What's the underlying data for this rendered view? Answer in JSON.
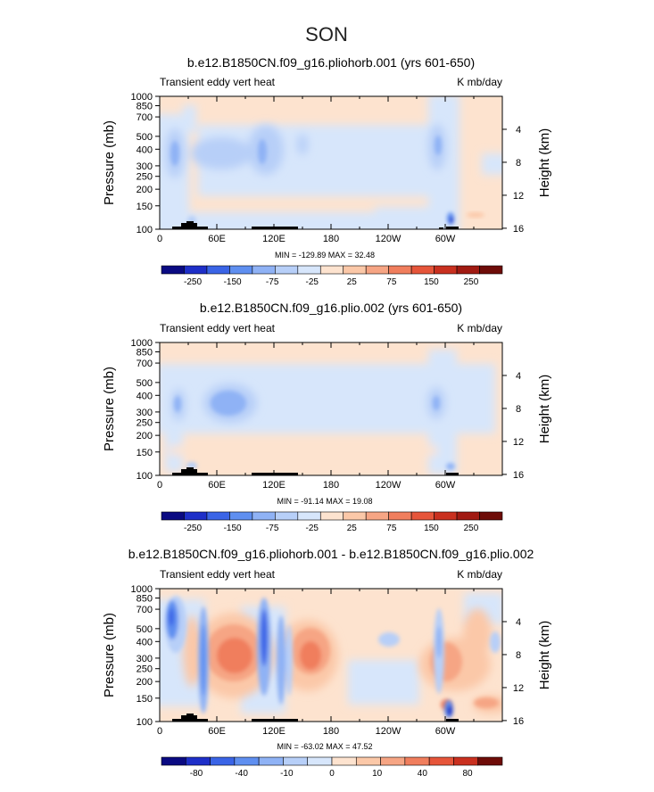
{
  "figure": {
    "title": "SON"
  },
  "chart_data": [
    {
      "type": "heatmap",
      "title": "b.e12.B1850CN.f09_g16.pliohorb.001 (yrs 601-650)",
      "left_label": "Transient eddy vert heat",
      "right_label": "K mb/day",
      "ylabel": "Pressure (mb)",
      "ylabel_right": "Height (km)",
      "x_tick_labels": [
        "0",
        "60E",
        "120E",
        "180",
        "120W",
        "60W"
      ],
      "y_tick_labels": [
        "100",
        "150",
        "200",
        "250",
        "300",
        "400",
        "500",
        "700",
        "850",
        "1000"
      ],
      "y_right_tick_labels": [
        "16",
        "12",
        "8",
        "4"
      ],
      "stats": "MIN = -129.89   MAX =  32.48",
      "colorbar_labels": [
        "-250",
        "-150",
        "-75",
        "-25",
        "25",
        "75",
        "150",
        "250"
      ],
      "colorbar_colors": [
        "#0a0a82",
        "#1e2fc8",
        "#3a64e6",
        "#5f8ff0",
        "#8fb2f5",
        "#b7cff8",
        "#d7e6fb",
        "#fde3cf",
        "#fbc8a8",
        "#f6a584",
        "#f07e5d",
        "#e6553a",
        "#c9301f",
        "#a11a12",
        "#6e0c08"
      ],
      "ylim_mb": [
        1000,
        100
      ],
      "xlim_deg": [
        0,
        360
      ]
    },
    {
      "type": "heatmap",
      "title": "b.e12.B1850CN.f09_g16.plio.002 (yrs 601-650)",
      "left_label": "Transient eddy vert heat",
      "right_label": "K mb/day",
      "ylabel": "Pressure (mb)",
      "ylabel_right": "Height (km)",
      "x_tick_labels": [
        "0",
        "60E",
        "120E",
        "180",
        "120W",
        "60W"
      ],
      "y_tick_labels": [
        "100",
        "150",
        "200",
        "250",
        "300",
        "400",
        "500",
        "700",
        "850",
        "1000"
      ],
      "y_right_tick_labels": [
        "16",
        "12",
        "8",
        "4"
      ],
      "stats": "MIN = -91.14   MAX =  19.08",
      "colorbar_labels": [
        "-250",
        "-150",
        "-75",
        "-25",
        "25",
        "75",
        "150",
        "250"
      ],
      "colorbar_colors": [
        "#0a0a82",
        "#1e2fc8",
        "#3a64e6",
        "#5f8ff0",
        "#8fb2f5",
        "#b7cff8",
        "#d7e6fb",
        "#fde3cf",
        "#fbc8a8",
        "#f6a584",
        "#f07e5d",
        "#e6553a",
        "#c9301f",
        "#a11a12",
        "#6e0c08"
      ],
      "ylim_mb": [
        1000,
        100
      ],
      "xlim_deg": [
        0,
        360
      ]
    },
    {
      "type": "heatmap",
      "title": "b.e12.B1850CN.f09_g16.pliohorb.001 - b.e12.B1850CN.f09_g16.plio.002",
      "left_label": "Transient eddy vert heat",
      "right_label": "K mb/day",
      "ylabel": "Pressure (mb)",
      "ylabel_right": "Height (km)",
      "x_tick_labels": [
        "0",
        "60E",
        "120E",
        "180",
        "120W",
        "60W"
      ],
      "y_tick_labels": [
        "100",
        "150",
        "200",
        "250",
        "300",
        "400",
        "500",
        "700",
        "850",
        "1000"
      ],
      "y_right_tick_labels": [
        "16",
        "12",
        "8",
        "4"
      ],
      "stats": "MIN = -63.02   MAX =  47.52",
      "colorbar_labels": [
        "-80",
        "-40",
        "-10",
        "0",
        "10",
        "40",
        "80"
      ],
      "colorbar_colors": [
        "#0a0a82",
        "#1e2fc8",
        "#3a64e6",
        "#5f8ff0",
        "#8fb2f5",
        "#b7cff8",
        "#d7e6fb",
        "#fde3cf",
        "#fbc8a8",
        "#f6a584",
        "#f07e5d",
        "#e6553a",
        "#c9301f",
        "#6e0c08"
      ],
      "ylim_mb": [
        1000,
        100
      ],
      "xlim_deg": [
        0,
        360
      ]
    }
  ]
}
